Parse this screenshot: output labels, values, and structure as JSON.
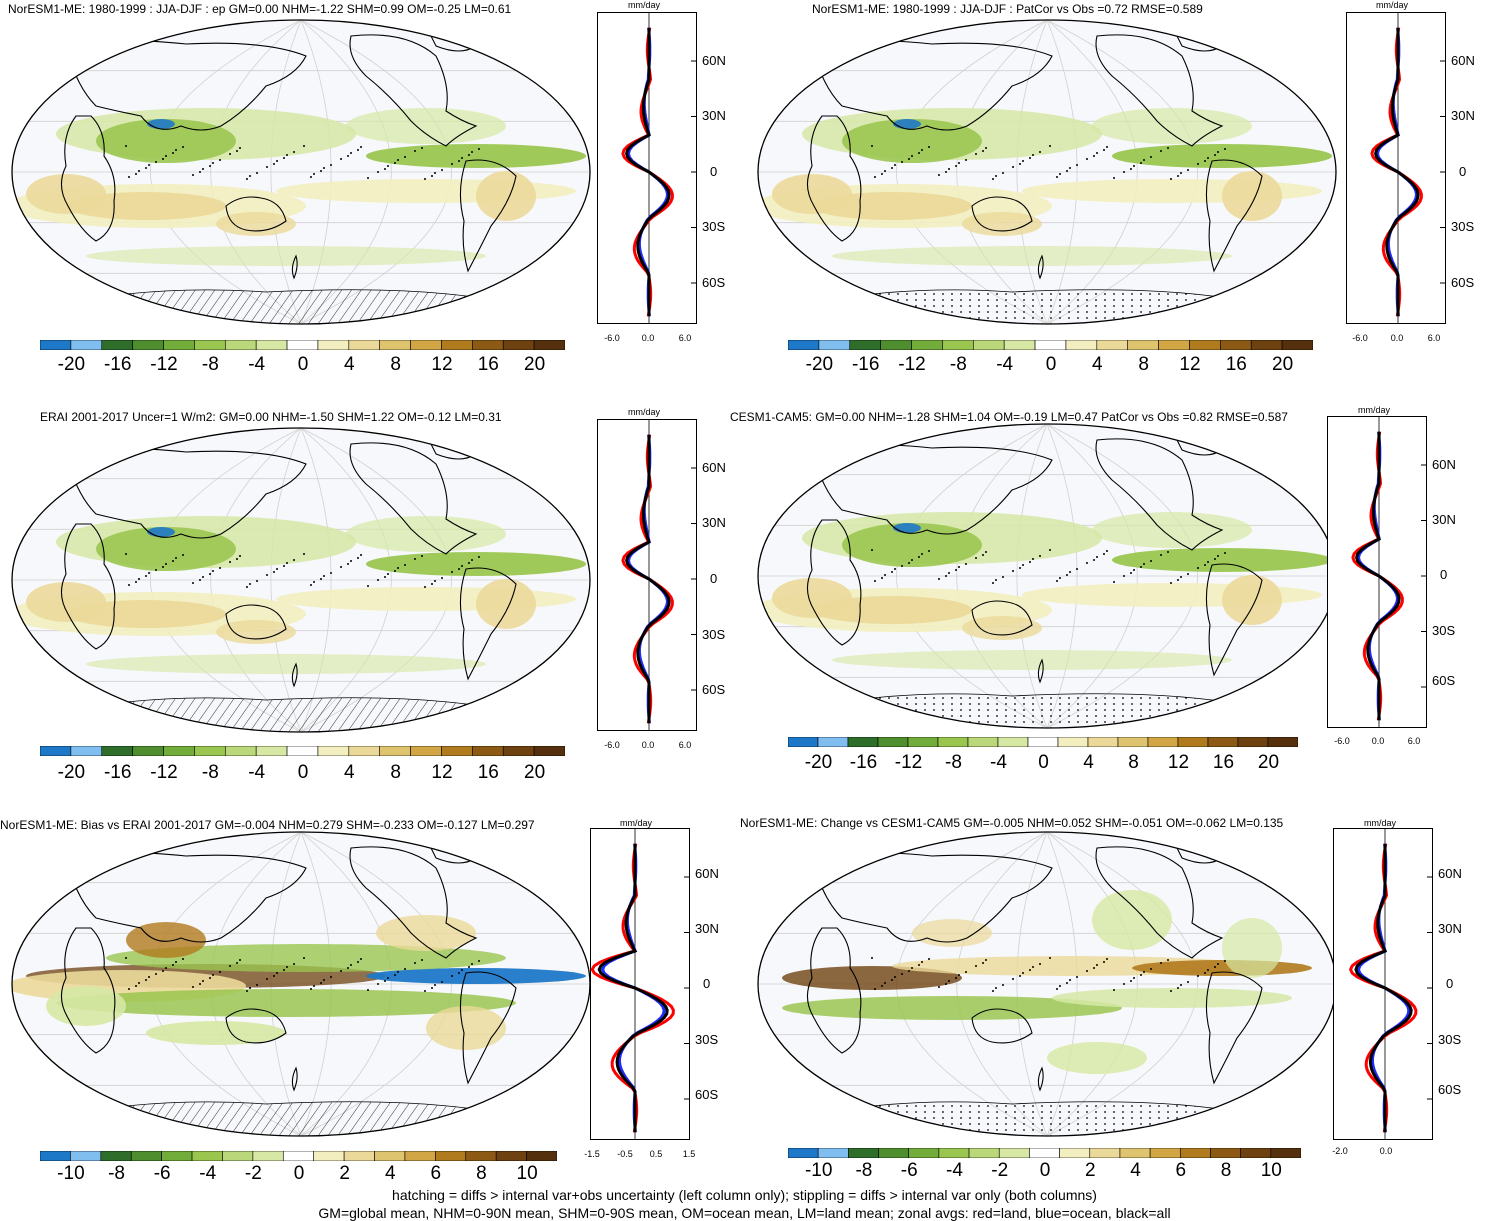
{
  "colors": {
    "ocean": "#f7f8fb",
    "land_outline": "#000000",
    "land_profile": "#ff0000",
    "ocean_profile": "#1f2bff",
    "all_profile": "#000000",
    "colorbar": [
      "#1e78c8",
      "#80bef0",
      "#2e6e2a",
      "#4e8e2e",
      "#72ac3a",
      "#9ac650",
      "#bad87a",
      "#d6e8a4",
      "#ffffff",
      "#f2eec0",
      "#ebd99a",
      "#dfc470",
      "#d2a644",
      "#b07a1e",
      "#8c5a14",
      "#6e4210",
      "#55300c"
    ]
  },
  "panels": [
    {
      "id": "p1",
      "title": "NorESM1-ME: 1980-1999 : JJA-DJF : ep GM=0.00 NHM=-1.22 SHM=0.99 OM=-0.25 LM=0.61",
      "unit": "mm/day",
      "lat_labels": [
        "60N",
        "30N",
        "0",
        "30S",
        "60S"
      ],
      "x_ticks": [
        "-6.0",
        "0.0",
        "6.0"
      ],
      "colorbar_labels": [
        "-20",
        "-16",
        "-12",
        "-8",
        "-4",
        "0",
        "4",
        "8",
        "12",
        "16",
        "20"
      ],
      "antarctic": "hatch"
    },
    {
      "id": "p2",
      "title": "NorESM1-ME: 1980-1999 : JJA-DJF : PatCor vs Obs =0.72 RMSE=0.589",
      "unit": "mm/day",
      "lat_labels": [
        "60N",
        "30N",
        "0",
        "30S",
        "60S"
      ],
      "x_ticks": [
        "-6.0",
        "0.0",
        "6.0"
      ],
      "colorbar_labels": [
        "-20",
        "-16",
        "-12",
        "-8",
        "-4",
        "0",
        "4",
        "8",
        "12",
        "16",
        "20"
      ],
      "antarctic": "dots"
    },
    {
      "id": "p3",
      "title": "ERAI 2001-2017 Uncer=1 W/m2: GM=0.00 NHM=-1.50 SHM=1.22 OM=-0.12 LM=0.31",
      "unit": "mm/day",
      "lat_labels": [
        "60N",
        "30N",
        "0",
        "30S",
        "60S"
      ],
      "x_ticks": [
        "-6.0",
        "0.0",
        "6.0"
      ],
      "colorbar_labels": [
        "-20",
        "-16",
        "-12",
        "-8",
        "-4",
        "0",
        "4",
        "8",
        "12",
        "16",
        "20"
      ],
      "antarctic": "hatch"
    },
    {
      "id": "p4",
      "title": "CESM1-CAM5: GM=0.00 NHM=-1.28 SHM=1.04 OM=-0.19 LM=0.47 PatCor vs Obs =0.82 RMSE=0.587",
      "unit": "mm/day",
      "lat_labels": [
        "60N",
        "30N",
        "0",
        "30S",
        "60S"
      ],
      "x_ticks": [
        "-6.0",
        "0.0",
        "6.0"
      ],
      "colorbar_labels": [
        "-20",
        "-16",
        "-12",
        "-8",
        "-4",
        "0",
        "4",
        "8",
        "12",
        "16",
        "20"
      ],
      "antarctic": "dots"
    },
    {
      "id": "p5",
      "title": "NorESM1-ME: Bias vs ERAI 2001-2017 GM=-0.004 NHM=0.279 SHM=-0.233 OM=-0.127 LM=0.297",
      "unit": "mm/day",
      "lat_labels": [
        "60N",
        "30N",
        "0",
        "30S",
        "60S"
      ],
      "x_ticks": [
        "-1.5",
        "-0.5",
        "0.5",
        "1.5"
      ],
      "colorbar_labels": [
        "-10",
        "-8",
        "-6",
        "-4",
        "-2",
        "0",
        "2",
        "4",
        "6",
        "8",
        "10"
      ],
      "antarctic": "hatch"
    },
    {
      "id": "p6",
      "title": "NorESM1-ME: Change vs CESM1-CAM5 GM=-0.005 NHM=0.052 SHM=-0.051 OM=-0.062 LM=0.135",
      "unit": "mm/day",
      "lat_labels": [
        "60N",
        "30N",
        "0",
        "30S",
        "60S"
      ],
      "x_ticks": [
        "-2.0",
        "0.0"
      ],
      "colorbar_labels": [
        "-10",
        "-8",
        "-6",
        "-4",
        "-2",
        "0",
        "2",
        "4",
        "6",
        "8",
        "10"
      ],
      "antarctic": "dots"
    }
  ],
  "footer": {
    "line1": "hatching = diffs > internal var+obs uncertainty (left column only); stippling = diffs > internal var only (both columns)",
    "line2": "GM=global mean, NHM=0-90N mean, SHM=0-90S mean, OM=ocean mean, LM=land mean; zonal avgs: red=land, blue=ocean, black=all"
  }
}
